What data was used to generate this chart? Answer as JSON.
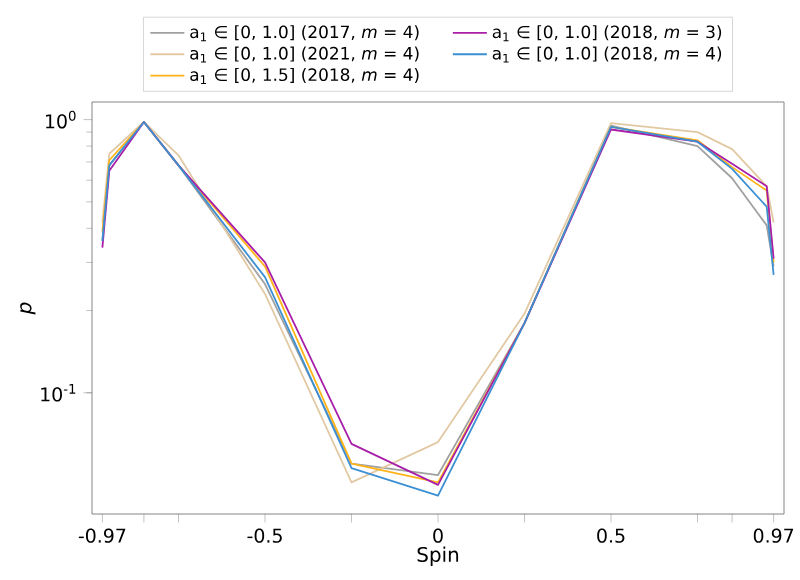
{
  "chart_data": {
    "type": "line",
    "xlabel": "Spin",
    "ylabel": "*p*",
    "log": "y",
    "x": [
      -0.97,
      -0.95,
      -0.85,
      -0.75,
      -0.5,
      -0.25,
      0,
      0.25,
      0.5,
      0.75,
      0.85,
      0.95,
      0.97
    ],
    "xlim": [
      -1.0,
      1.0
    ],
    "xticks": [
      -0.97,
      {
        "value": -0.85,
        "label": null
      },
      {
        "value": -0.75,
        "label": null
      },
      -0.5,
      {
        "value": -0.25,
        "label": null
      },
      0,
      {
        "value": 0.25,
        "label": null
      },
      0.5,
      {
        "value": 0.75,
        "label": null
      },
      {
        "value": 0.85,
        "label": null
      },
      0.97
    ],
    "ylim": [
      0.036,
      1.16
    ],
    "yticks": [
      {
        "value": 0.1,
        "label": "10$^{-1}$"
      },
      {
        "value": 1,
        "label": "10$^{0}$"
      }
    ],
    "grid": false,
    "legend": "top",
    "marker": "none",
    "line_style": "solid",
    "series": [
      {
        "name": "a$_{1}$ ∈ [0, 1.0] (2017, *m* = 4)",
        "color": "#a0a0a0",
        "values": [
          0.36,
          0.68,
          0.98,
          0.68,
          0.25,
          0.055,
          0.05,
          0.18,
          0.95,
          0.8,
          0.61,
          0.41,
          0.29
        ]
      },
      {
        "name": "a$_{1}$ ∈ [0, 1.0] (2021, *m* = 4)",
        "color": "#e2c9a4",
        "values": [
          0.42,
          0.75,
          0.98,
          0.74,
          0.23,
          0.047,
          0.066,
          0.195,
          0.97,
          0.9,
          0.78,
          0.57,
          0.42
        ]
      },
      {
        "name": "a$_{1}$ ∈ [0, 1.5] (2018, *m* = 4)",
        "color": "#ffb319",
        "values": [
          0.39,
          0.71,
          0.98,
          0.68,
          0.29,
          0.055,
          0.047,
          0.18,
          0.94,
          0.84,
          0.67,
          0.55,
          0.3
        ]
      },
      {
        "name": "a$_{1}$ ∈ [0, 1.0] (2018, *m* = 3)",
        "color": "#a81ea8",
        "values": [
          0.34,
          0.65,
          0.98,
          0.68,
          0.3,
          0.065,
          0.046,
          0.18,
          0.92,
          0.83,
          0.69,
          0.57,
          0.31
        ]
      },
      {
        "name": "a$_{1}$ ∈ [0, 1.0] (2018, *m* = 4)",
        "color": "#3b8fd2",
        "values": [
          0.36,
          0.68,
          0.98,
          0.68,
          0.265,
          0.053,
          0.042,
          0.18,
          0.94,
          0.83,
          0.66,
          0.48,
          0.27
        ]
      }
    ]
  }
}
